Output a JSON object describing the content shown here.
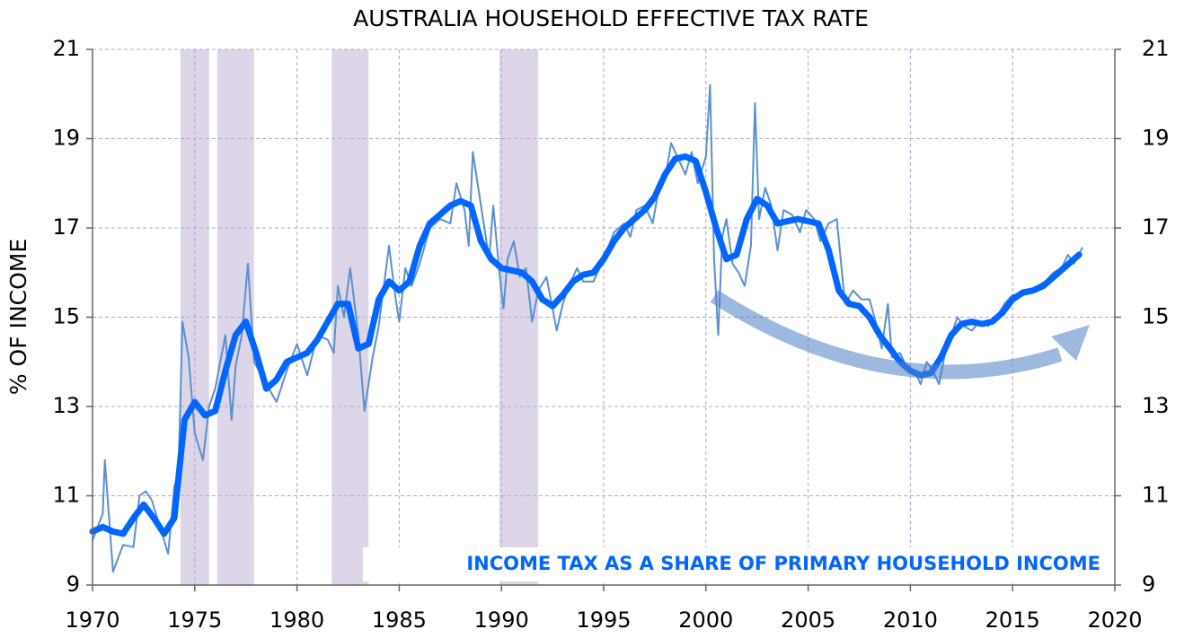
{
  "chart_data": {
    "type": "line",
    "title": "AUSTRALIA HOUSEHOLD EFFECTIVE TAX RATE",
    "y_label": "% OF INCOME",
    "annotation": "INCOME TAX AS A SHARE OF PRIMARY HOUSEHOLD INCOME",
    "xlim": [
      1970,
      2020
    ],
    "xticks": [
      1970,
      1975,
      1980,
      1985,
      1990,
      1995,
      2000,
      2005,
      2010,
      2015,
      2020
    ],
    "ylim": [
      9,
      21
    ],
    "yticks": [
      9,
      11,
      13,
      15,
      17,
      19,
      21
    ],
    "grid": true,
    "shaded_periods": [
      [
        1974.3,
        1975.7
      ],
      [
        1976.1,
        1977.9
      ],
      [
        1981.7,
        1983.5
      ],
      [
        1989.9,
        1991.8
      ]
    ],
    "shade_color": "#ddd6e8",
    "series": [
      {
        "color": "#5b8fd0",
        "width": 2,
        "x": [
          1970,
          1970.5,
          1970.6,
          1971,
          1971.5,
          1972,
          1972.3,
          1972.6,
          1972.9,
          1973.3,
          1973.7,
          1974,
          1974.2,
          1974.4,
          1974.7,
          1975,
          1975.4,
          1975.7,
          1976,
          1976.5,
          1976.8,
          1977,
          1977.3,
          1977.6,
          1977.9,
          1978.5,
          1979,
          1979.5,
          1980,
          1980.5,
          1981,
          1981.5,
          1981.8,
          1982,
          1982.3,
          1982.6,
          1983,
          1983.3,
          1983.7,
          1984,
          1984.5,
          1984.8,
          1985,
          1985.3,
          1985.6,
          1986,
          1986.5,
          1987,
          1987.5,
          1987.8,
          1988.2,
          1988.4,
          1988.6,
          1989,
          1989.4,
          1989.6,
          1989.9,
          1990.1,
          1990.3,
          1990.6,
          1990.9,
          1991.2,
          1991.5,
          1991.8,
          1992.2,
          1992.5,
          1992.7,
          1993,
          1993.3,
          1993.7,
          1994,
          1994.5,
          1995,
          1995.5,
          1996,
          1996.3,
          1996.6,
          1997,
          1997.4,
          1997.7,
          1998,
          1998.3,
          1998.7,
          1999,
          1999.3,
          1999.6,
          2000,
          2000.2,
          2000.4,
          2000.6,
          2000.8,
          2001,
          2001.3,
          2001.6,
          2001.9,
          2002.2,
          2002.4,
          2002.6,
          2002.9,
          2003.2,
          2003.5,
          2003.8,
          2004.2,
          2004.6,
          2004.9,
          2005.3,
          2005.6,
          2006,
          2006.4,
          2006.8,
          2007.2,
          2007.6,
          2008,
          2008.3,
          2008.6,
          2008.9,
          2009.1,
          2009.5,
          2009.8,
          2010.2,
          2010.5,
          2010.8,
          2011.1,
          2011.4,
          2011.7,
          2012,
          2012.3,
          2012.6,
          2013,
          2013.4,
          2013.8,
          2014.2,
          2014.6,
          2015,
          2015.4,
          2015.8,
          2016.2,
          2016.6,
          2017,
          2017.4,
          2017.7,
          2018,
          2018.4
        ],
        "values": [
          10.0,
          10.6,
          11.8,
          9.3,
          9.9,
          9.85,
          11.0,
          11.1,
          10.9,
          10.3,
          9.7,
          11.2,
          11.5,
          14.9,
          14.1,
          12.4,
          11.8,
          13.0,
          13.4,
          14.6,
          12.7,
          13.9,
          14.6,
          16.2,
          14.0,
          13.5,
          13.1,
          13.8,
          14.4,
          13.7,
          14.6,
          14.5,
          14.2,
          15.7,
          15.0,
          16.1,
          14.6,
          12.9,
          14.1,
          14.8,
          16.6,
          15.5,
          14.9,
          16.1,
          15.7,
          16.2,
          17.0,
          17.2,
          17.1,
          18.0,
          17.4,
          16.6,
          18.7,
          17.5,
          16.3,
          17.5,
          16.0,
          15.2,
          16.3,
          16.7,
          15.9,
          16.1,
          14.9,
          15.6,
          15.9,
          15.2,
          14.7,
          15.3,
          15.7,
          16.1,
          15.8,
          15.8,
          16.3,
          16.9,
          17.1,
          16.8,
          17.4,
          17.5,
          17.1,
          17.9,
          18.1,
          18.9,
          18.5,
          18.2,
          18.7,
          18.0,
          18.6,
          20.2,
          16.3,
          14.6,
          16.8,
          17.2,
          16.2,
          16.0,
          15.7,
          16.6,
          19.8,
          17.2,
          17.9,
          17.5,
          16.5,
          17.4,
          17.3,
          16.9,
          17.4,
          17.2,
          16.7,
          17.1,
          17.2,
          15.3,
          15.6,
          15.4,
          15.4,
          14.9,
          14.3,
          15.3,
          14.1,
          14.2,
          13.9,
          13.8,
          13.5,
          14.0,
          13.8,
          13.5,
          14.2,
          14.6,
          15.0,
          14.8,
          14.7,
          14.9,
          14.8,
          15.0,
          15.3,
          15.5,
          15.5,
          15.6,
          15.7,
          15.8,
          16.0,
          16.1,
          16.4,
          16.2,
          16.55
        ]
      },
      {
        "color": "#0066ff",
        "width": 7,
        "x": [
          1970,
          1970.5,
          1971,
          1971.5,
          1972,
          1972.5,
          1973,
          1973.5,
          1974,
          1974.5,
          1975,
          1975.5,
          1976,
          1976.5,
          1977,
          1977.5,
          1978,
          1978.5,
          1979,
          1979.5,
          1980,
          1980.5,
          1981,
          1981.5,
          1982,
          1982.5,
          1983,
          1983.5,
          1984,
          1984.5,
          1985,
          1985.5,
          1986,
          1986.5,
          1987,
          1987.5,
          1988,
          1988.5,
          1989,
          1989.5,
          1990,
          1990.5,
          1991,
          1991.5,
          1992,
          1992.5,
          1993,
          1993.5,
          1994,
          1994.5,
          1995,
          1995.5,
          1996,
          1996.5,
          1997,
          1997.5,
          1998,
          1998.5,
          1999,
          1999.5,
          2000,
          2000.5,
          2001,
          2001.5,
          2002,
          2002.5,
          2003,
          2003.5,
          2004,
          2004.5,
          2005,
          2005.5,
          2006,
          2006.5,
          2007,
          2007.5,
          2008,
          2008.5,
          2009,
          2009.5,
          2010,
          2010.5,
          2011,
          2011.5,
          2012,
          2012.5,
          2013,
          2013.5,
          2014,
          2014.5,
          2015,
          2015.5,
          2016,
          2016.5,
          2017,
          2017.5,
          2018,
          2018.25
        ],
        "values": [
          10.2,
          10.3,
          10.2,
          10.15,
          10.5,
          10.8,
          10.5,
          10.15,
          10.5,
          12.7,
          13.1,
          12.8,
          12.9,
          13.8,
          14.6,
          14.9,
          14.2,
          13.4,
          13.6,
          14.0,
          14.1,
          14.2,
          14.5,
          14.9,
          15.3,
          15.3,
          14.3,
          14.4,
          15.4,
          15.8,
          15.6,
          15.8,
          16.6,
          17.1,
          17.3,
          17.5,
          17.6,
          17.5,
          16.7,
          16.3,
          16.1,
          16.05,
          16.0,
          15.8,
          15.4,
          15.25,
          15.5,
          15.8,
          15.95,
          16.0,
          16.3,
          16.7,
          17.0,
          17.2,
          17.4,
          17.7,
          18.2,
          18.55,
          18.6,
          18.5,
          17.8,
          17.0,
          16.3,
          16.4,
          17.2,
          17.65,
          17.5,
          17.1,
          17.15,
          17.2,
          17.15,
          17.1,
          16.5,
          15.6,
          15.3,
          15.25,
          15.0,
          14.6,
          14.3,
          14.0,
          13.8,
          13.7,
          13.75,
          14.1,
          14.6,
          14.85,
          14.9,
          14.85,
          14.9,
          15.1,
          15.4,
          15.55,
          15.6,
          15.7,
          15.9,
          16.1,
          16.3,
          16.4
        ]
      }
    ]
  }
}
